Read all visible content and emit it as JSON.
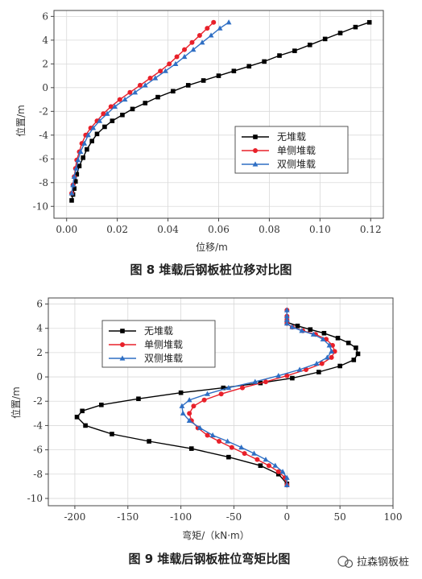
{
  "chart_data": [
    {
      "type": "line",
      "caption": "图 8   堆载后钢板桩位移对比图",
      "xlabel": "位移/m",
      "ylabel": "位置/m",
      "xlim": [
        -0.005,
        0.125
      ],
      "ylim": [
        -11,
        6.5
      ],
      "xticks": [
        0.0,
        0.02,
        0.04,
        0.06,
        0.08,
        0.1,
        0.12
      ],
      "xtick_labels": [
        "0.00",
        "0.02",
        "0.04",
        "0.06",
        "0.08",
        "0.10",
        "0.12"
      ],
      "yticks": [
        6,
        4,
        2,
        0,
        -2,
        -4,
        -6,
        -8,
        -10
      ],
      "ytick_labels": [
        "6",
        "4",
        "2",
        "0",
        "-2",
        "-4",
        "-6",
        "-8",
        "-10"
      ],
      "grid": true,
      "legend_position": "middle-right",
      "series": [
        {
          "name": "无堆载",
          "color": "#000000",
          "marker": "square",
          "x": [
            0.1195,
            0.114,
            0.108,
            0.102,
            0.096,
            0.09,
            0.084,
            0.078,
            0.072,
            0.066,
            0.06,
            0.054,
            0.048,
            0.042,
            0.036,
            0.031,
            0.026,
            0.022,
            0.018,
            0.015,
            0.012,
            0.01,
            0.008,
            0.0065,
            0.005,
            0.004,
            0.0035,
            0.003,
            0.0025,
            0.002
          ],
          "y": [
            5.5,
            5.1,
            4.6,
            4.1,
            3.6,
            3.1,
            2.7,
            2.2,
            1.8,
            1.4,
            1.0,
            0.6,
            0.2,
            -0.3,
            -0.8,
            -1.3,
            -1.8,
            -2.3,
            -2.8,
            -3.3,
            -3.9,
            -4.5,
            -5.2,
            -5.9,
            -6.6,
            -7.3,
            -7.9,
            -8.5,
            -9.0,
            -9.5
          ]
        },
        {
          "name": "单侧堆载",
          "color": "#e8202a",
          "marker": "circle",
          "x": [
            0.058,
            0.0555,
            0.0525,
            0.0495,
            0.0465,
            0.0435,
            0.0405,
            0.037,
            0.033,
            0.029,
            0.025,
            0.021,
            0.0175,
            0.0145,
            0.012,
            0.0095,
            0.0075,
            0.006,
            0.005,
            0.004,
            0.0035,
            0.003,
            0.0025,
            0.002
          ],
          "y": [
            5.5,
            5.0,
            4.4,
            3.8,
            3.2,
            2.6,
            2.0,
            1.4,
            0.8,
            0.2,
            -0.4,
            -1.0,
            -1.6,
            -2.2,
            -2.8,
            -3.4,
            -4.0,
            -4.7,
            -5.4,
            -6.1,
            -6.8,
            -7.5,
            -8.2,
            -8.9
          ]
        },
        {
          "name": "双侧堆载",
          "color": "#2f6fc4",
          "marker": "triangle",
          "x": [
            0.064,
            0.0605,
            0.057,
            0.0535,
            0.05,
            0.0465,
            0.043,
            0.039,
            0.035,
            0.031,
            0.027,
            0.023,
            0.019,
            0.016,
            0.013,
            0.0105,
            0.0085,
            0.007,
            0.0055,
            0.0045,
            0.0038,
            0.003,
            0.0025,
            0.002
          ],
          "y": [
            5.5,
            5.0,
            4.4,
            3.8,
            3.2,
            2.6,
            2.0,
            1.4,
            0.8,
            0.2,
            -0.4,
            -1.0,
            -1.6,
            -2.2,
            -2.8,
            -3.4,
            -4.0,
            -4.7,
            -5.4,
            -6.1,
            -6.8,
            -7.5,
            -8.2,
            -8.9
          ]
        }
      ]
    },
    {
      "type": "line",
      "caption": "图 9   堆载后钢板桩位弯矩比图",
      "xlabel": "弯矩/（kN·m）",
      "ylabel": "位置/m",
      "xlim": [
        -225,
        100
      ],
      "ylim": [
        -10.6,
        6.5
      ],
      "xticks": [
        -200,
        -150,
        -100,
        -50,
        0,
        50,
        100
      ],
      "xtick_labels": [
        "-200",
        "-150",
        "-100",
        "-50",
        "0",
        "50",
        "100"
      ],
      "yticks": [
        6,
        4,
        2,
        0,
        -2,
        -4,
        -6,
        -8,
        -10
      ],
      "ytick_labels": [
        "6",
        "4",
        "2",
        "0",
        "-2",
        "-4",
        "-6",
        "-8",
        "-10"
      ],
      "grid": true,
      "legend_position": "top-left",
      "series": [
        {
          "name": "无堆载",
          "color": "#000000",
          "marker": "square",
          "x": [
            0,
            10,
            22,
            35,
            48,
            58,
            65,
            67,
            63,
            50,
            30,
            5,
            -25,
            -60,
            -100,
            -140,
            -175,
            -193,
            -198,
            -190,
            -165,
            -130,
            -90,
            -55,
            -25,
            -8,
            0
          ],
          "y": [
            4.5,
            4.2,
            3.9,
            3.6,
            3.2,
            2.8,
            2.4,
            1.9,
            1.4,
            0.9,
            0.4,
            -0.1,
            -0.5,
            -0.9,
            -1.3,
            -1.8,
            -2.3,
            -2.8,
            -3.3,
            -4.0,
            -4.7,
            -5.3,
            -5.9,
            -6.6,
            -7.3,
            -8.0,
            -8.8
          ]
        },
        {
          "name": "单侧堆载",
          "color": "#e8202a",
          "marker": "circle",
          "x": [
            0,
            0,
            0,
            0,
            5,
            15,
            27,
            37,
            43,
            45,
            42,
            33,
            18,
            0,
            -20,
            -42,
            -62,
            -78,
            -88,
            -92,
            -90,
            -84,
            -75,
            -64,
            -52,
            -40,
            -28,
            -17,
            -8,
            -2,
            0
          ],
          "y": [
            5.5,
            5.0,
            4.7,
            4.4,
            4.1,
            3.8,
            3.5,
            3.1,
            2.6,
            2.1,
            1.6,
            1.1,
            0.6,
            0.1,
            -0.4,
            -0.9,
            -1.4,
            -1.9,
            -2.4,
            -3.0,
            -3.6,
            -4.2,
            -4.8,
            -5.3,
            -5.8,
            -6.3,
            -6.8,
            -7.3,
            -7.8,
            -8.3,
            -8.9
          ]
        },
        {
          "name": "双侧堆载",
          "color": "#2f6fc4",
          "marker": "triangle",
          "x": [
            0,
            0,
            0,
            0,
            5,
            14,
            25,
            34,
            40,
            42,
            38,
            28,
            12,
            -8,
            -30,
            -55,
            -75,
            -92,
            -99,
            -98,
            -92,
            -82,
            -70,
            -56,
            -43,
            -31,
            -20,
            -11,
            -4,
            0,
            0
          ],
          "y": [
            5.5,
            5.0,
            4.7,
            4.4,
            4.1,
            3.8,
            3.5,
            3.1,
            2.6,
            2.1,
            1.6,
            1.1,
            0.6,
            0.1,
            -0.4,
            -0.9,
            -1.4,
            -1.9,
            -2.4,
            -3.0,
            -3.6,
            -4.2,
            -4.8,
            -5.3,
            -5.8,
            -6.3,
            -6.8,
            -7.3,
            -7.8,
            -8.3,
            -8.9
          ]
        }
      ]
    }
  ],
  "watermark_text": "拉森钢板桩"
}
